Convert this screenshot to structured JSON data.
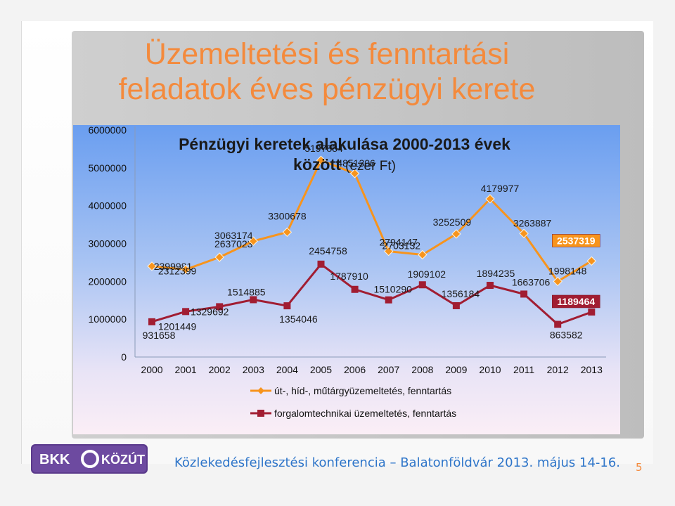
{
  "slide": {
    "title_line1": "Üzemeltetési és fenntartási",
    "title_line2": "feladatok éves pénzügyi kerete",
    "footer": "Közlekedésfejlesztési konferencia – Balatonföldvár 2013. május 14-16.",
    "page_number": "5",
    "logo_left": "BKK",
    "logo_right": "KÖZÚT"
  },
  "colors": {
    "title": "#f48a3c",
    "series1": "#f7941d",
    "series2": "#a11d32",
    "footer": "#2e75c9"
  },
  "chart_data": {
    "type": "line",
    "title_bold": "Pénzügyi keretek alakulása 2000-2013 évek között",
    "title_unit": "(ezer Ft)",
    "categories": [
      "2000",
      "2001",
      "2002",
      "2003",
      "2004",
      "2005",
      "2006",
      "2007",
      "2008",
      "2009",
      "2010",
      "2011",
      "2012",
      "2013"
    ],
    "y_ticks": [
      "0",
      "1000000",
      "2000000",
      "3000000",
      "4000000",
      "5000000",
      "6000000"
    ],
    "ylim": [
      0,
      6000000
    ],
    "grid": false,
    "legend_position": "bottom",
    "series": [
      {
        "name": "út-, híd-, műtárgyüzemeltetés, fenntartás",
        "marker": "diamond",
        "values": [
          2399981,
          2312399,
          2637023,
          3063174,
          3300678,
          5197884,
          4851306,
          2794147,
          2703132,
          3252509,
          4179977,
          3263887,
          1998148,
          2537319
        ],
        "labels": [
          "2399981",
          "2312399",
          "2637023",
          "3063174",
          "3300678",
          "5197884",
          "4851306",
          "2794147",
          "2703132",
          "3252509",
          "4179977",
          "3263887",
          "1998148",
          "2537319"
        ]
      },
      {
        "name": "forgalomtechnikai üzemeltetés, fenntartás",
        "marker": "square",
        "values": [
          931658,
          1201449,
          1329692,
          1514885,
          1354046,
          2454758,
          1787910,
          1510290,
          1909102,
          1356184,
          1894235,
          1663706,
          863582,
          1189464
        ],
        "labels": [
          "931658",
          "1201449",
          "1329692",
          "1514885",
          "1354046",
          "2454758",
          "1787910",
          "1510290",
          "1909102",
          "1356184",
          "1894235",
          "1663706",
          "863582",
          "1189464"
        ]
      }
    ]
  }
}
